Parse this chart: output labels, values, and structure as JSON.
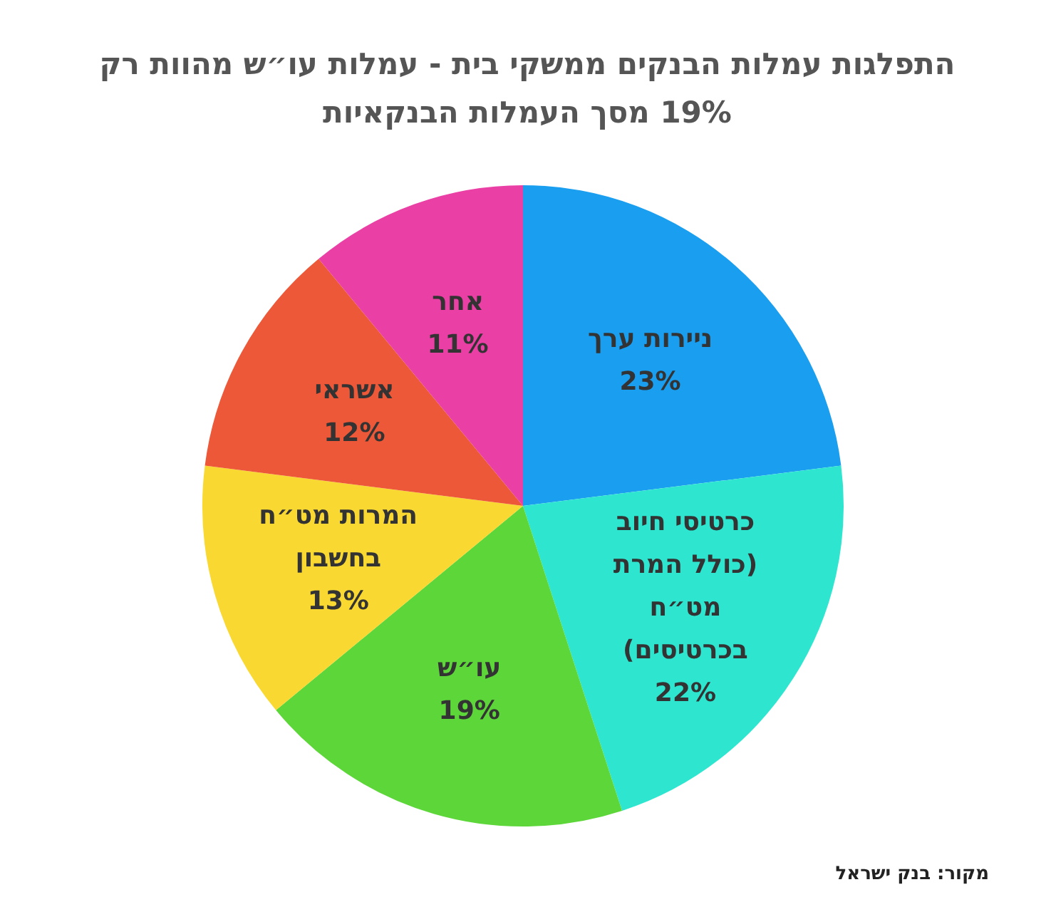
{
  "chart_data": {
    "type": "pie",
    "title": "התפלגות עמלות הבנקים ממשקי בית - עמלות עו״ש מהוות רק 19% מסך העמלות הבנקאיות",
    "categories": [
      "ניירות ערך",
      "כרטיסי חיוב (כולל המרת מט״ח בכרטיסים)",
      "עו״ש",
      "המרות מט״ח בחשבון",
      "אשראי",
      "אחר"
    ],
    "values": [
      23,
      22,
      19,
      13,
      12,
      11
    ],
    "value_labels": [
      "23%",
      "22%",
      "19%",
      "13%",
      "12%",
      "11%"
    ],
    "colors": [
      "#1a9ef0",
      "#2ee6d0",
      "#5dd63a",
      "#f9d832",
      "#ec5838",
      "#ea3fa4"
    ],
    "annotations": [
      "מקור: בנק ישראל"
    ]
  }
}
